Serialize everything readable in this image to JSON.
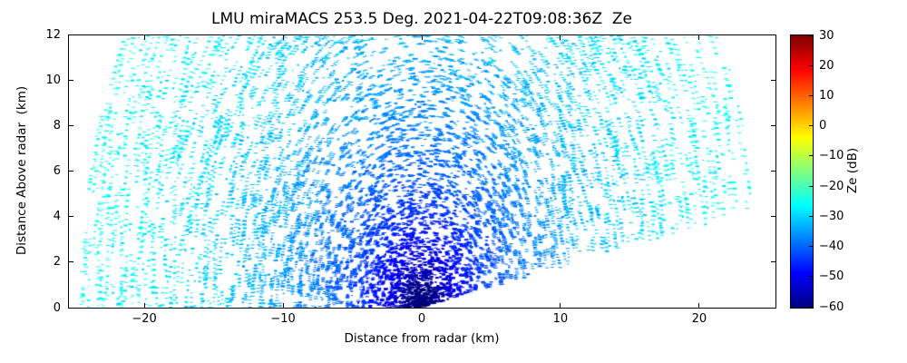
{
  "figure": {
    "background": "#ffffff",
    "axis_color": "#000000"
  },
  "chart_data": {
    "type": "scatter",
    "subtype": "radar-rhi-speckle-plot",
    "title": "LMU miraMACS 253.5 Deg. 2021-04-22T09:08:36Z  Ze",
    "xlabel": "Distance from radar (km)",
    "ylabel": "Distance Above radar  (km)",
    "xlim": [
      -25.5,
      25.5
    ],
    "ylim": [
      0,
      12
    ],
    "xticks": [
      -20,
      -10,
      0,
      10,
      20
    ],
    "xtick_labels": [
      "−20",
      "−10",
      "0",
      "10",
      "20"
    ],
    "yticks": [
      0,
      2,
      4,
      6,
      8,
      10,
      12
    ],
    "ytick_labels": [
      "0",
      "2",
      "4",
      "6",
      "8",
      "10",
      "12"
    ],
    "grid": false,
    "legend": "none",
    "colorbar": {
      "label": "Ze (dB)",
      "min": -60,
      "max": 30,
      "ticks": [
        30,
        20,
        10,
        0,
        -10,
        -20,
        -30,
        -40,
        -50,
        -60
      ],
      "tick_labels": [
        "30",
        "20",
        "10",
        "0",
        "−10",
        "−20",
        "−30",
        "−40",
        "−50",
        "−60"
      ],
      "colormap": "jet",
      "position": "right"
    },
    "scan": {
      "azimuth_deg": 253.5,
      "elevation_min_deg": 10,
      "elevation_max_deg": 180,
      "range_min_km": 0.15,
      "range_max_km": 24.6
    },
    "speckle_model": {
      "description": "Noise speckle fan (RHI scan): Ze increases with range; dark blue (-60 to -50 dB) clustered near radar at bottom center, medium blue (-45 to -35 dB) at mid ranges, cyan (-32 to -24 dB) across far ranges; white gaps between dash-like speckles; lower-right wedge below ~10 deg elevation is empty",
      "ze_at_1km_dB": -60,
      "range_slope_dB_per_decade": 25,
      "jitter_dB": 3,
      "samples": 7000,
      "chain_max": 4,
      "chain_delta_elev_deg": 0.7,
      "seed": 42
    }
  }
}
